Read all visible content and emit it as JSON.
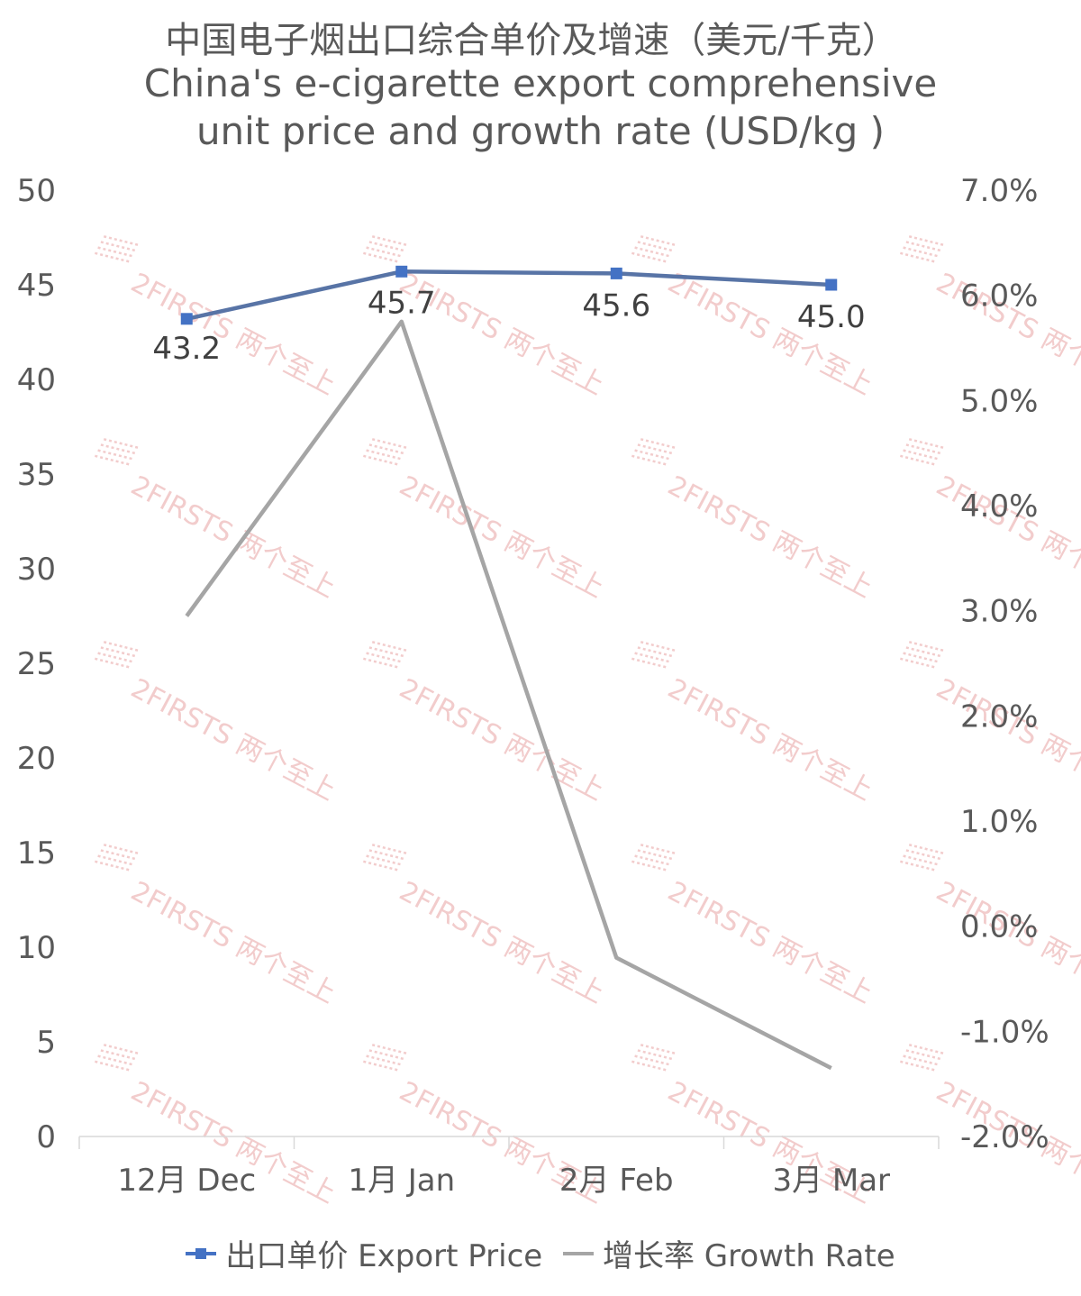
{
  "title_cn": "中国电子烟出口综合单价及增速（美元/千克）",
  "title_en_line1": "China's e-cigarette export comprehensive",
  "title_en_line2": "unit price and growth rate (USD/kg )",
  "watermark": "2FIRSTS 两个至上",
  "colors": {
    "price": "#4472C4",
    "price_line": "#5874A6",
    "growth": "#A5A5A5",
    "text": "#595959",
    "watermark": "#E8A3A3"
  },
  "chart_data": {
    "type": "line",
    "categories": [
      "12月 Dec",
      "1月 Jan",
      "2月 Feb",
      "3月 Mar"
    ],
    "series": [
      {
        "name": "出口单价 Export Price",
        "axis": "left",
        "marker": "square",
        "values": [
          43.2,
          45.7,
          45.6,
          45.0
        ],
        "data_labels": [
          "43.2",
          "45.7",
          "45.6",
          "45.0"
        ]
      },
      {
        "name": "增长率 Growth Rate",
        "axis": "right",
        "marker": "none",
        "values": [
          2.95,
          5.75,
          -0.3,
          -1.35
        ]
      }
    ],
    "y_left": {
      "min": 0,
      "max": 50,
      "ticks": [
        "0",
        "5",
        "10",
        "15",
        "20",
        "25",
        "30",
        "35",
        "40",
        "45",
        "50"
      ]
    },
    "y_right": {
      "min": -2.0,
      "max": 7.0,
      "unit": "%",
      "ticks": [
        "-2.0%",
        "-1.0%",
        "0.0%",
        "1.0%",
        "2.0%",
        "3.0%",
        "4.0%",
        "5.0%",
        "6.0%",
        "7.0%"
      ]
    },
    "grid": false,
    "legend": "bottom"
  }
}
